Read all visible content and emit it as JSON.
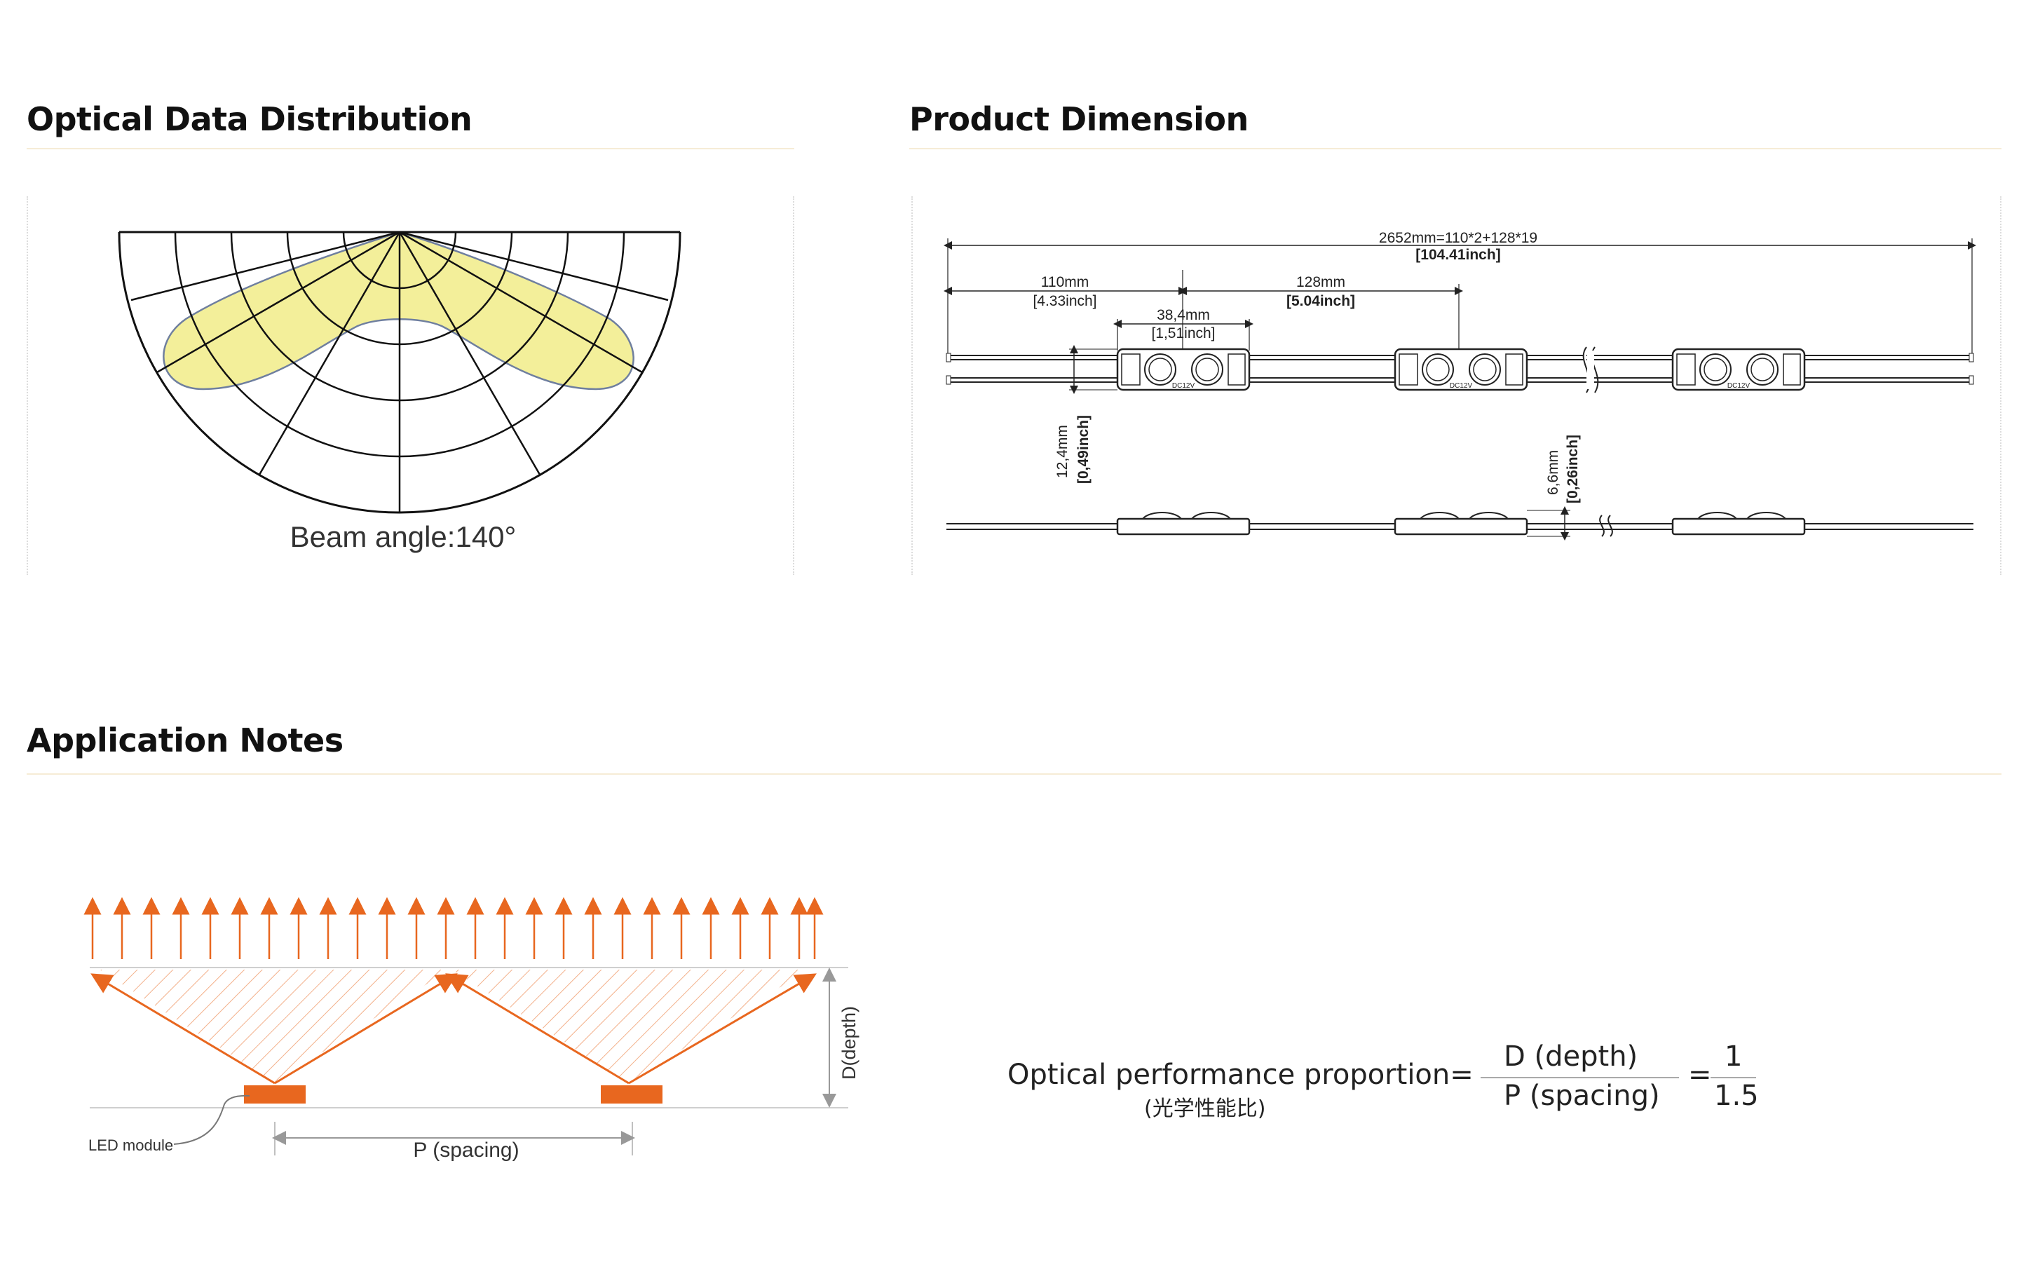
{
  "sections": {
    "optical": {
      "title": "Optical Data Distribution",
      "beam_label": "Beam angle:140°"
    },
    "dimension": {
      "title": "Product Dimension",
      "total_mm": "2652mm=110*2+128*19",
      "total_inch": "[104.41inch]",
      "first_mm": "110mm",
      "first_inch": "[4.33inch]",
      "pitch_mm": "128mm",
      "pitch_inch": "[5.04inch]",
      "module_mm": "38,4mm",
      "module_inch": "[1,51inch]",
      "width_mm": "12,4mm",
      "width_inch": "[0,49inch]",
      "height_mm": "6,6mm",
      "height_inch": "[0,26inch]",
      "module_marking": "DC12V"
    },
    "application": {
      "title": "Application Notes",
      "led_label": "LED module",
      "spacing_label": "P (spacing)",
      "depth_label": "D(depth)",
      "formula": {
        "lead": "Optical performance proportion=",
        "lead_sub": "(光学性能比)",
        "numerator": "D (depth)",
        "denominator": "P (spacing)",
        "equals": "=",
        "ratio_num": "1",
        "ratio_den": "1.5"
      }
    }
  },
  "colors": {
    "accent": "#e8671f",
    "beam_fill": "#f3ef9a",
    "rule": "#f6ecd6"
  }
}
